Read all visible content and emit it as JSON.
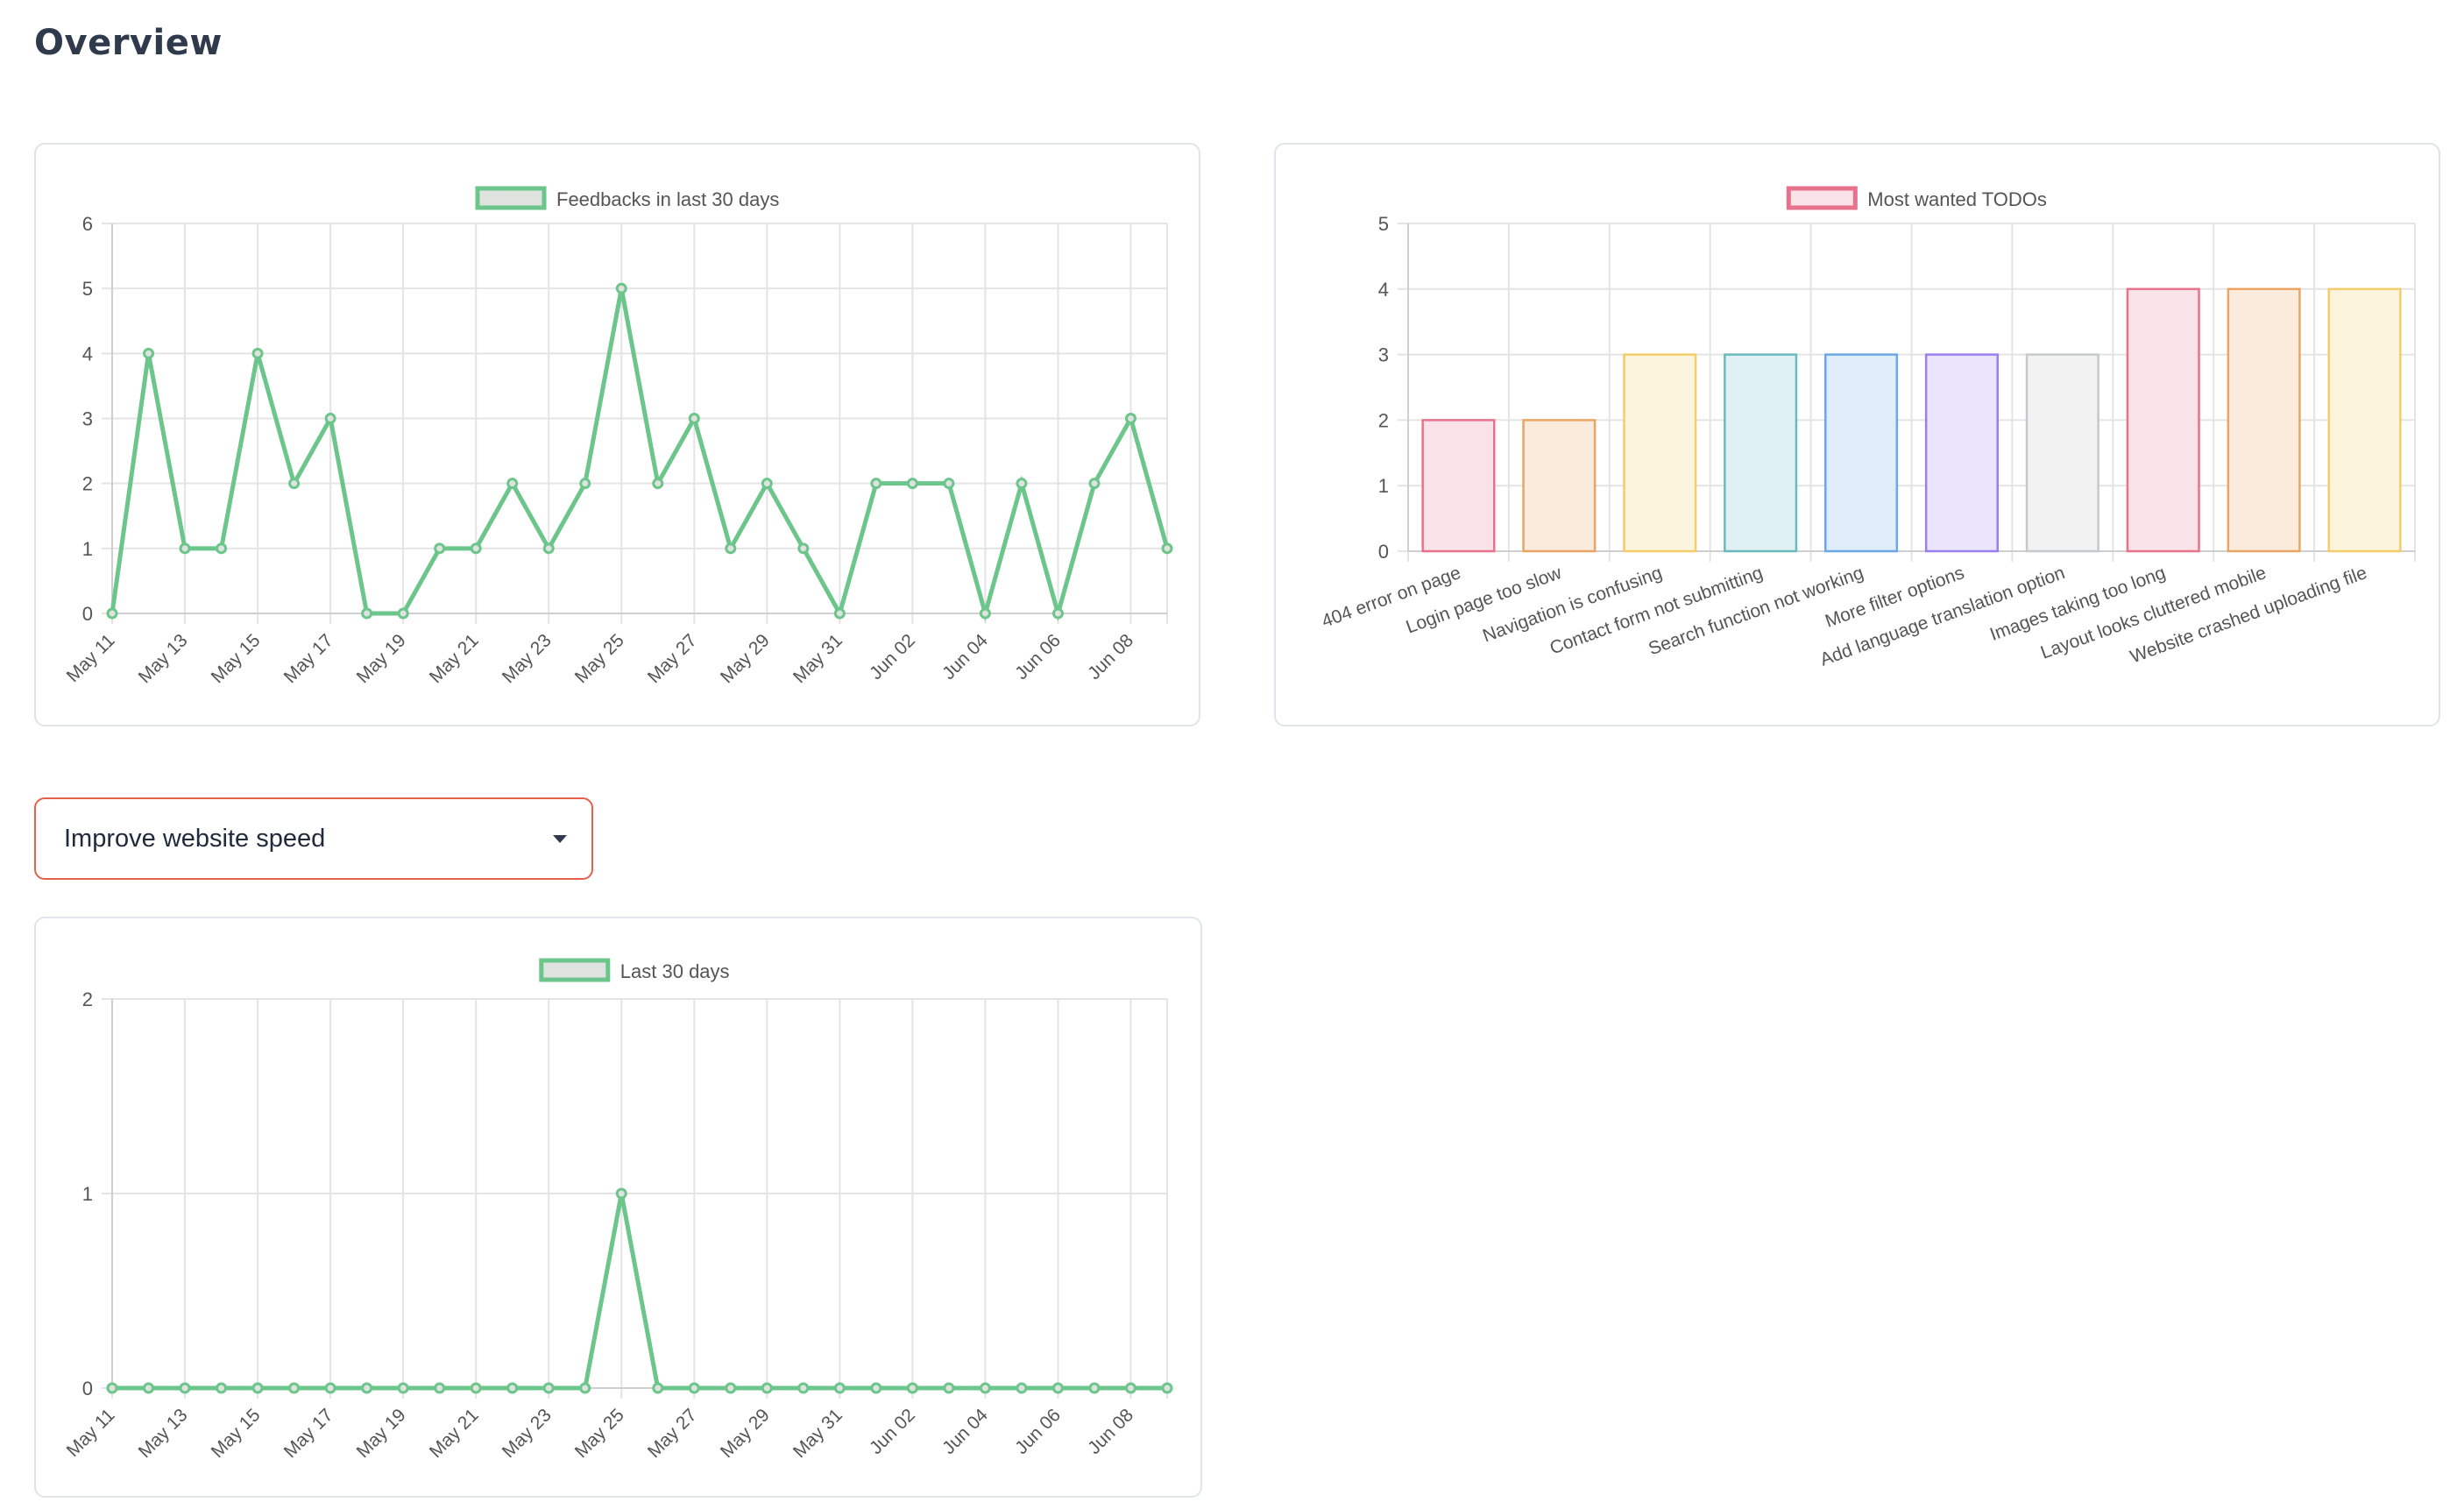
{
  "header": {
    "title": "Overview"
  },
  "filter": {
    "selected": "Improve website speed"
  },
  "colors": {
    "green": "#6cc58a",
    "green_fill": "#dfe3df"
  },
  "chart_data": [
    {
      "id": "feedbacks",
      "type": "line",
      "title": "",
      "legend": "Feedbacks in last 30 days",
      "legend_placement": "top",
      "color": "#6cc58a",
      "x": [
        "May 11",
        "May 12",
        "May 13",
        "May 14",
        "May 15",
        "May 16",
        "May 17",
        "May 18",
        "May 19",
        "May 20",
        "May 21",
        "May 22",
        "May 23",
        "May 24",
        "May 25",
        "May 26",
        "May 27",
        "May 28",
        "May 29",
        "May 30",
        "May 31",
        "Jun 01",
        "Jun 02",
        "Jun 03",
        "Jun 04",
        "Jun 05",
        "Jun 06",
        "Jun 07",
        "Jun 08",
        "Jun 09"
      ],
      "values": [
        0,
        4,
        1,
        1,
        4,
        2,
        3,
        0,
        0,
        1,
        1,
        2,
        1,
        2,
        5,
        2,
        3,
        1,
        2,
        1,
        0,
        2,
        2,
        2,
        0,
        2,
        0,
        2,
        3,
        1
      ],
      "x_tick_labels": [
        "May 11",
        "May 13",
        "May 15",
        "May 17",
        "May 19",
        "May 21",
        "May 23",
        "May 25",
        "May 27",
        "May 29",
        "May 31",
        "Jun 02",
        "Jun 04",
        "Jun 06",
        "Jun 08"
      ],
      "y_ticks": [
        0,
        1,
        2,
        3,
        4,
        5,
        6
      ],
      "ylim": [
        0,
        6
      ],
      "grid": true
    },
    {
      "id": "todos",
      "type": "bar",
      "title": "",
      "legend": "Most wanted TODOs",
      "legend_placement": "top",
      "categories": [
        "404 error on page",
        "Login page too slow",
        "Navigation is confusing",
        "Contact form not submitting",
        "Search function not working",
        "More filter options",
        "Add language translation option",
        "Images taking too long",
        "Layout looks cluttered mobile",
        "Website crashed uploading file"
      ],
      "values": [
        2,
        2,
        3,
        3,
        3,
        3,
        3,
        4,
        4,
        4
      ],
      "colors": [
        "#e8728b",
        "#eaa563",
        "#f2cd6a",
        "#6ab9bd",
        "#6ba7e4",
        "#9a7ef1",
        "#c6c8cb",
        "#e8728b",
        "#eaa563",
        "#f2cd6a"
      ],
      "fills": [
        "#fae3e8",
        "#fbebdc",
        "#fdf4dd",
        "#dff1f2",
        "#dfecfa",
        "#eae4fd",
        "#f2f2f3",
        "#fae3e8",
        "#fbebdc",
        "#fdf4dd"
      ],
      "y_ticks": [
        0,
        1,
        2,
        3,
        4,
        5
      ],
      "ylim": [
        0,
        5
      ],
      "grid": true
    },
    {
      "id": "trend",
      "type": "line",
      "title": "",
      "legend": "Last 30 days",
      "legend_placement": "top",
      "color": "#6cc58a",
      "x": [
        "May 11",
        "May 12",
        "May 13",
        "May 14",
        "May 15",
        "May 16",
        "May 17",
        "May 18",
        "May 19",
        "May 20",
        "May 21",
        "May 22",
        "May 23",
        "May 24",
        "May 25",
        "May 26",
        "May 27",
        "May 28",
        "May 29",
        "May 30",
        "May 31",
        "Jun 01",
        "Jun 02",
        "Jun 03",
        "Jun 04",
        "Jun 05",
        "Jun 06",
        "Jun 07",
        "Jun 08",
        "Jun 09"
      ],
      "values": [
        0,
        0,
        0,
        0,
        0,
        0,
        0,
        0,
        0,
        0,
        0,
        0,
        0,
        0,
        1,
        0,
        0,
        0,
        0,
        0,
        0,
        0,
        0,
        0,
        0,
        0,
        0,
        0,
        0,
        0
      ],
      "x_tick_labels": [
        "May 11",
        "May 13",
        "May 15",
        "May 17",
        "May 19",
        "May 21",
        "May 23",
        "May 25",
        "May 27",
        "May 29",
        "May 31",
        "Jun 02",
        "Jun 04",
        "Jun 06",
        "Jun 08"
      ],
      "y_ticks": [
        0,
        1,
        2
      ],
      "ylim": [
        0,
        2
      ],
      "grid": true
    }
  ]
}
